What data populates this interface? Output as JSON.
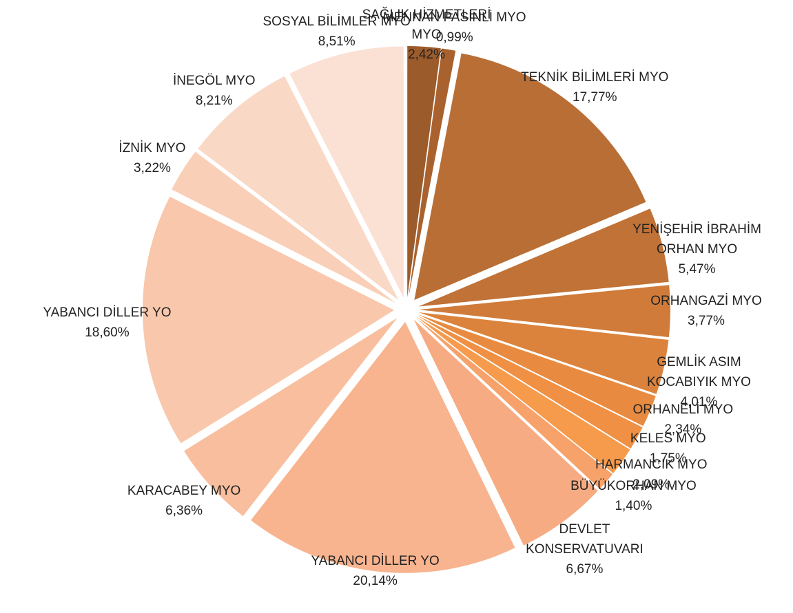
{
  "chart_data": {
    "type": "pie",
    "categories": [
      "SAĞLIK HİZMETLERİ MYO",
      "MENNAN PASİNLİ MYO",
      "TEKNİK BİLİMLERİ MYO",
      "YENİŞEHİR İBRAHİM ORHAN MYO",
      "ORHANGAZİ MYO",
      "GEMLİK ASIM KOCABIYIK MYO",
      "ORHANELİ MYO",
      "KELES MYO",
      "HARMANCIK MYO",
      "BÜYÜKORHAN MYO",
      "DEVLET KONSERVATUVARI",
      "YABANCI DİLLER YO",
      "KARACABEY MYO",
      "YABANCI DİLLER YO",
      "İZNİK MYO",
      "İNEGÖL MYO",
      "SOSYAL BİLİMLER MYO"
    ],
    "values": [
      2.42,
      0.99,
      17.77,
      5.47,
      3.77,
      4.01,
      2.34,
      1.75,
      2.09,
      1.4,
      6.67,
      20.14,
      6.36,
      18.6,
      3.22,
      8.21,
      8.51
    ],
    "value_labels": [
      "2,42%",
      "0,99%",
      "17,77%",
      "5,47%",
      "3,77%",
      "4,01%",
      "2,34%",
      "1,75%",
      "2,09%",
      "1,40%",
      "6,67%",
      "20,14%",
      "6,36%",
      "18,60%",
      "3,22%",
      "8,21%",
      "8,51%"
    ],
    "colors": [
      "#9c5b2b",
      "#a9622e",
      "#b86e34",
      "#c07237",
      "#d07b3a",
      "#db833c",
      "#e88b40",
      "#ef9044",
      "#f69a4c",
      "#f7a26a",
      "#f7ab82",
      "#f8b48f",
      "#f8be9d",
      "#f9c7ab",
      "#f9cfb8",
      "#fad8c6",
      "#fbe0d4"
    ]
  }
}
